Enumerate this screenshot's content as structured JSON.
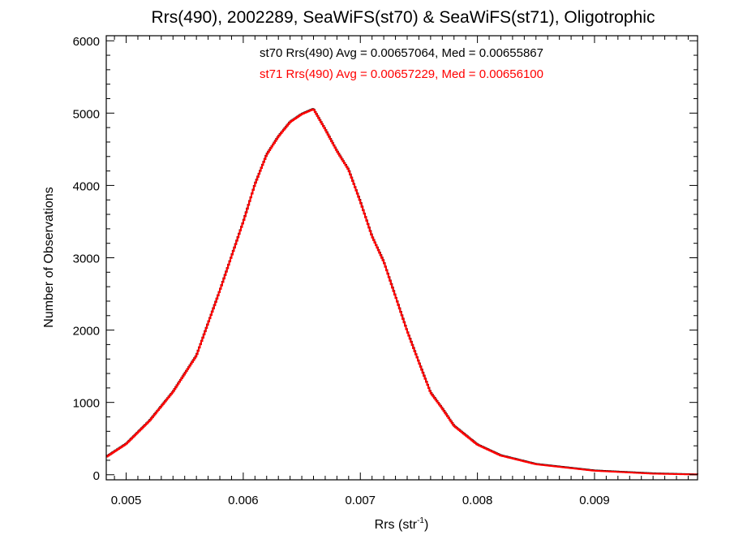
{
  "chart_data": {
    "type": "line",
    "title": "Rrs(490), 2002289, SeaWiFS(st70) & SeaWiFS(st71), Oligotrophic",
    "xlabel": "Rrs (str",
    "xlabel_sup": "-1",
    "xlabel_close": ")",
    "ylabel": "Number of Observations",
    "xlim": [
      0.00483,
      0.00988
    ],
    "ylim": [
      -70,
      6070
    ],
    "xticks": [
      0.005,
      0.006,
      0.007,
      0.008,
      0.009
    ],
    "xtick_labels": [
      "0.005",
      "0.006",
      "0.007",
      "0.008",
      "0.009"
    ],
    "yticks": [
      0,
      1000,
      2000,
      3000,
      4000,
      5000,
      6000
    ],
    "ytick_labels": [
      "0",
      "1000",
      "2000",
      "3000",
      "4000",
      "5000",
      "6000"
    ],
    "grid": false,
    "annotations": [
      {
        "text": "st70 Rrs(490) Avg = 0.00657064, Med = 0.00655867",
        "color": "#000000"
      },
      {
        "text": "st71 Rrs(490) Avg = 0.00657229, Med = 0.00656100",
        "color": "#ff0000"
      }
    ],
    "series": [
      {
        "color": "#000000",
        "x": [
          0.00483,
          0.005,
          0.0052,
          0.0054,
          0.0056,
          0.0058,
          0.006,
          0.0061,
          0.0062,
          0.0063,
          0.0064,
          0.0065,
          0.0066,
          0.0067,
          0.0068,
          0.0069,
          0.007,
          0.0071,
          0.0072,
          0.0073,
          0.0074,
          0.0075,
          0.0076,
          0.0077,
          0.0078,
          0.008,
          0.0082,
          0.0085,
          0.009,
          0.0095,
          0.00988
        ],
        "y": [
          250,
          430,
          750,
          1150,
          1650,
          2550,
          3500,
          4020,
          4430,
          4680,
          4880,
          4990,
          5060,
          4780,
          4480,
          4220,
          3780,
          3300,
          2950,
          2470,
          1990,
          1560,
          1140,
          920,
          680,
          420,
          270,
          150,
          60,
          20,
          5
        ]
      },
      {
        "color": "#ff0000",
        "x": [
          0.00483,
          0.005,
          0.0052,
          0.0054,
          0.0056,
          0.0058,
          0.006,
          0.0061,
          0.0062,
          0.0063,
          0.0064,
          0.0065,
          0.0066,
          0.0067,
          0.0068,
          0.0069,
          0.007,
          0.0071,
          0.0072,
          0.0073,
          0.0074,
          0.0075,
          0.0076,
          0.0077,
          0.0078,
          0.008,
          0.0082,
          0.0085,
          0.009,
          0.0095,
          0.00988
        ],
        "y": [
          245,
          425,
          745,
          1145,
          1645,
          2545,
          3495,
          4015,
          4425,
          4675,
          4875,
          4985,
          5055,
          4775,
          4475,
          4215,
          3775,
          3295,
          2945,
          2465,
          1985,
          1555,
          1135,
          915,
          675,
          415,
          265,
          145,
          55,
          15,
          3
        ]
      }
    ]
  }
}
